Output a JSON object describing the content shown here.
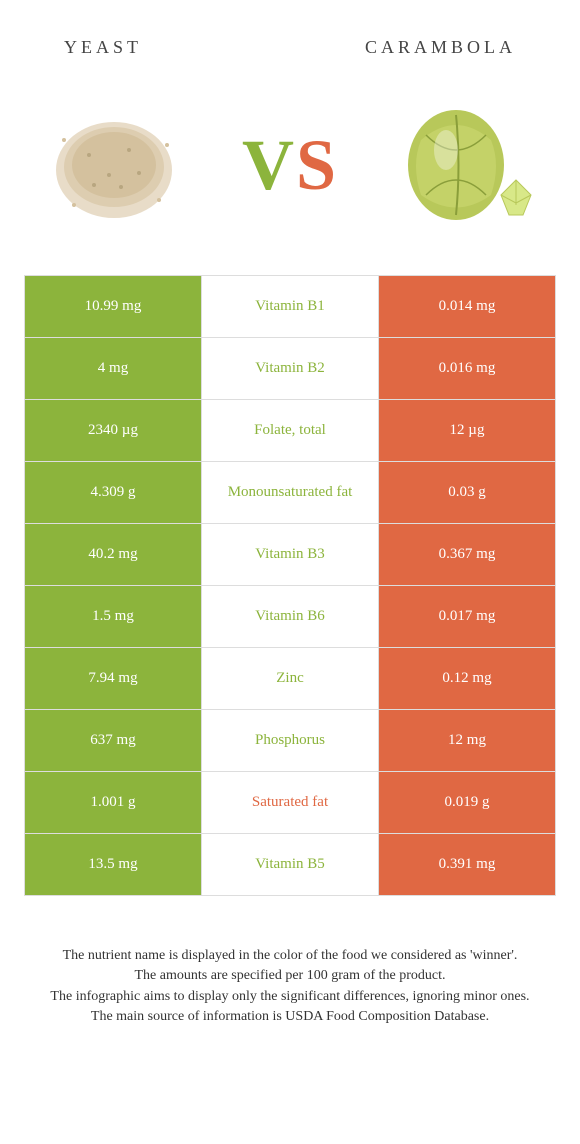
{
  "header": {
    "left_title": "yeast",
    "right_title": "carambola",
    "vs_v": "V",
    "vs_s": "S"
  },
  "colors": {
    "green": "#8cb43c",
    "orange": "#e06843",
    "white": "#ffffff",
    "border": "#dddddd",
    "text": "#444444"
  },
  "table": {
    "rows": [
      {
        "left": "10.99 mg",
        "label": "Vitamin B1",
        "winner": "green",
        "right": "0.014 mg"
      },
      {
        "left": "4 mg",
        "label": "Vitamin B2",
        "winner": "green",
        "right": "0.016 mg"
      },
      {
        "left": "2340 µg",
        "label": "Folate, total",
        "winner": "green",
        "right": "12 µg"
      },
      {
        "left": "4.309 g",
        "label": "Monounsaturated fat",
        "winner": "green",
        "right": "0.03 g"
      },
      {
        "left": "40.2 mg",
        "label": "Vitamin B3",
        "winner": "green",
        "right": "0.367 mg"
      },
      {
        "left": "1.5 mg",
        "label": "Vitamin B6",
        "winner": "green",
        "right": "0.017 mg"
      },
      {
        "left": "7.94 mg",
        "label": "Zinc",
        "winner": "green",
        "right": "0.12 mg"
      },
      {
        "left": "637 mg",
        "label": "Phosphorus",
        "winner": "green",
        "right": "12 mg"
      },
      {
        "left": "1.001 g",
        "label": "Saturated fat",
        "winner": "orange",
        "right": "0.019 g"
      },
      {
        "left": "13.5 mg",
        "label": "Vitamin B5",
        "winner": "green",
        "right": "0.391 mg"
      }
    ]
  },
  "footer": {
    "line1": "The nutrient name is displayed in the color of the food we considered as 'winner'.",
    "line2": "The amounts are specified per 100 gram of the product.",
    "line3": "The infographic aims to display only the significant differences, ignoring minor ones.",
    "line4": "The main source of information is USDA Food Composition Database."
  }
}
